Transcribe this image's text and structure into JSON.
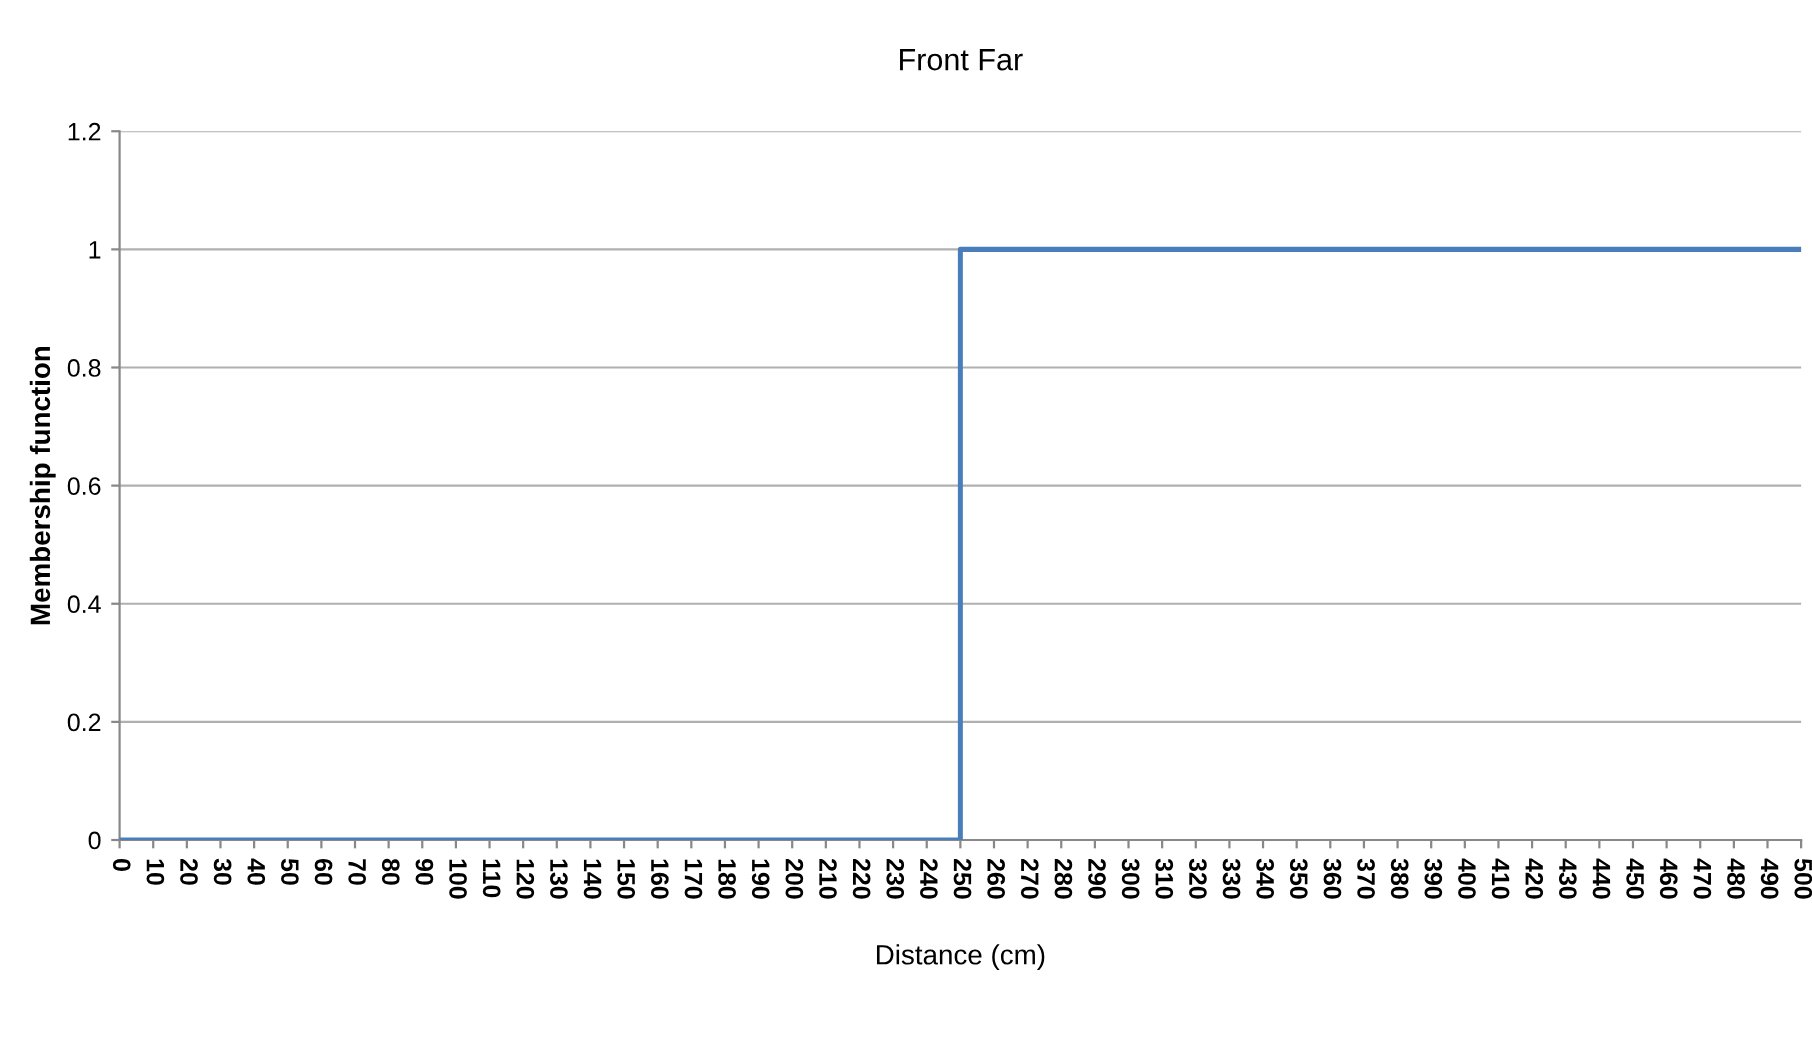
{
  "chart_data": {
    "type": "line",
    "title": "Front Far",
    "xlabel": "Distance (cm)",
    "ylabel": "Membership function",
    "series": [
      {
        "color": "#4a7ebb",
        "x": [
          0,
          250,
          250,
          500
        ],
        "values": [
          0,
          0,
          1,
          1
        ]
      }
    ],
    "xlim": [
      0,
      500
    ],
    "xticks": [
      0,
      10,
      20,
      30,
      40,
      50,
      60,
      70,
      80,
      90,
      100,
      110,
      120,
      130,
      140,
      150,
      160,
      170,
      180,
      190,
      200,
      210,
      220,
      230,
      240,
      250,
      260,
      270,
      280,
      290,
      300,
      310,
      320,
      330,
      340,
      350,
      360,
      370,
      380,
      390,
      400,
      410,
      420,
      430,
      440,
      450,
      460,
      470,
      480,
      490,
      500
    ],
    "ylim": [
      0,
      1.2
    ],
    "yticks": [
      0,
      0.2,
      0.4,
      0.6,
      0.8,
      1,
      1.2
    ],
    "grid": "y",
    "legend": false,
    "marker": "none",
    "line_style": "solid"
  }
}
